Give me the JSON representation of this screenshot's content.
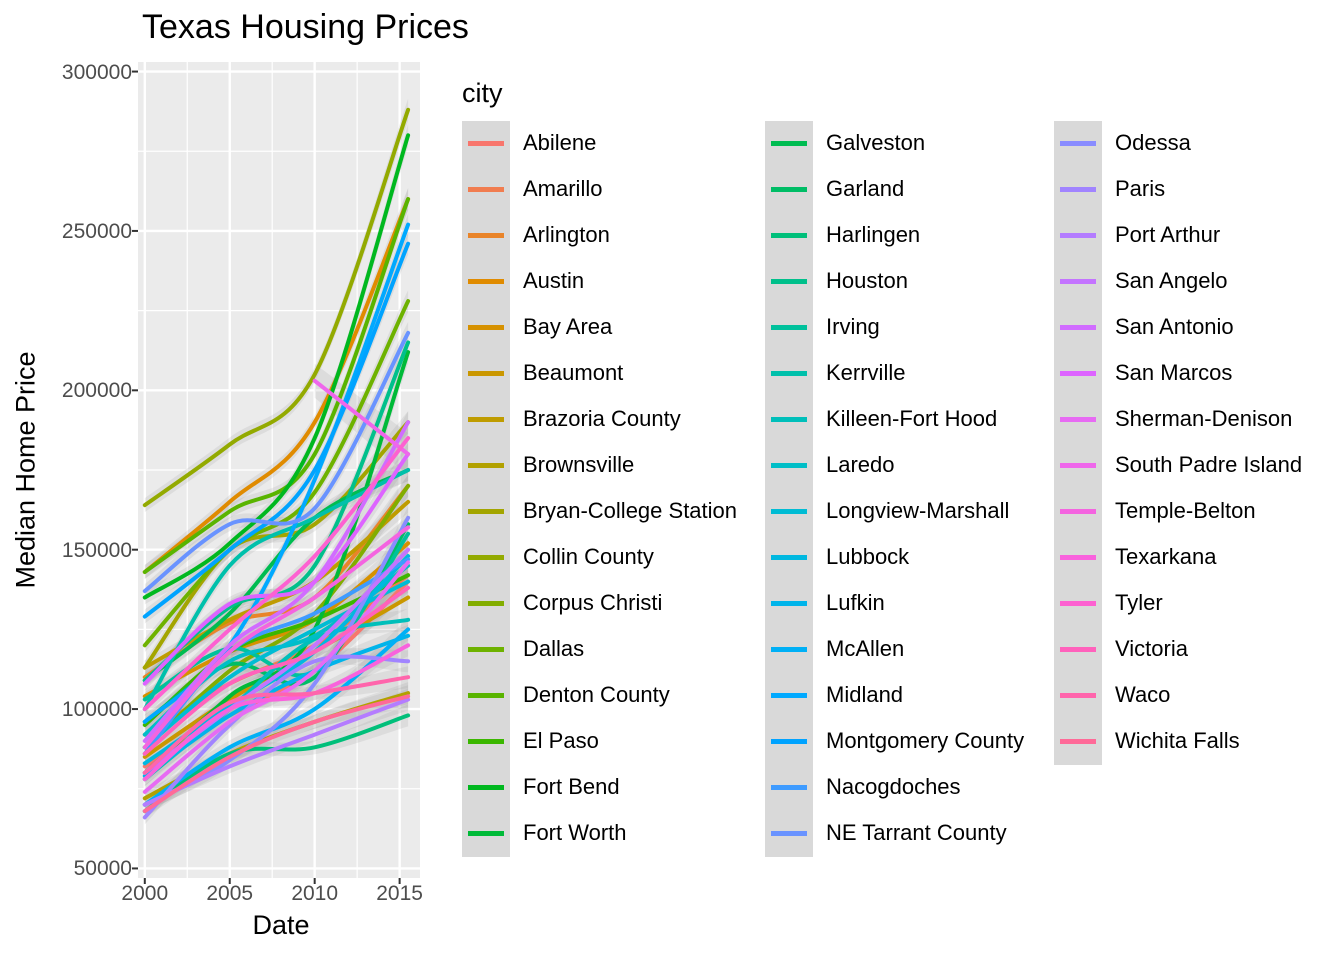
{
  "chart_data": {
    "type": "line",
    "title": "Texas Housing Prices",
    "xlabel": "Date",
    "ylabel": "Median Home Price",
    "legend_title": "city",
    "legend_position": "right",
    "grid": true,
    "smoothed": true,
    "confidence_band": true,
    "xlim": [
      1999.6,
      2016.2
    ],
    "ylim": [
      47000,
      303000
    ],
    "x_ticks": [
      2000,
      2005,
      2010,
      2015
    ],
    "x_tick_labels": [
      "2000",
      "2005",
      "2010",
      "2015"
    ],
    "y_ticks": [
      50000,
      100000,
      150000,
      200000,
      250000,
      300000
    ],
    "y_tick_labels": [
      "50000",
      "100000",
      "150000",
      "200000",
      "250000",
      "300000"
    ],
    "x": [
      2000,
      2005,
      2010,
      2015.5
    ],
    "series": [
      {
        "name": "Abilene",
        "color": "#F8766D",
        "values": [
          82000,
          98000,
          112000,
          140000
        ]
      },
      {
        "name": "Amarillo",
        "color": "#F17D50",
        "values": [
          92000,
          108000,
          120000,
          142000
        ]
      },
      {
        "name": "Arlington",
        "color": "#E98429",
        "values": [
          110000,
          127000,
          135000,
          170000
        ]
      },
      {
        "name": "Austin",
        "color": "#E08B00",
        "values": [
          143000,
          165000,
          190000,
          260000
        ]
      },
      {
        "name": "Bay Area",
        "color": "#D69100",
        "values": [
          104000,
          118000,
          128000,
          152000
        ]
      },
      {
        "name": "Beaumont",
        "color": "#CA9700",
        "values": [
          85000,
          103000,
          118000,
          135000
        ]
      },
      {
        "name": "Brazoria County",
        "color": "#BF9C00",
        "values": [
          113000,
          128000,
          140000,
          165000
        ]
      },
      {
        "name": "Brownsville",
        "color": "#B2A100",
        "values": [
          72000,
          86000,
          96000,
          105000
        ]
      },
      {
        "name": "Bryan-College Station",
        "color": "#A3A500",
        "values": [
          113000,
          150000,
          158000,
          190000
        ]
      },
      {
        "name": "Collin County",
        "color": "#93AA00",
        "values": [
          164000,
          183000,
          205000,
          288000
        ]
      },
      {
        "name": "Corpus Christi",
        "color": "#82AD00",
        "values": [
          88000,
          112000,
          130000,
          170000
        ]
      },
      {
        "name": "Dallas",
        "color": "#6EB200",
        "values": [
          120000,
          150000,
          168000,
          228000
        ]
      },
      {
        "name": "Denton County",
        "color": "#59B400",
        "values": [
          143000,
          162000,
          180000,
          260000
        ]
      },
      {
        "name": "El Paso",
        "color": "#3BB700",
        "values": [
          95000,
          118000,
          128000,
          142000
        ]
      },
      {
        "name": "Fort Bend",
        "color": "#00B81F",
        "values": [
          135000,
          152000,
          185000,
          280000
        ]
      },
      {
        "name": "Fort Worth",
        "color": "#00BA38",
        "values": [
          80000,
          104000,
          125000,
          212000
        ]
      },
      {
        "name": "Galveston",
        "color": "#00BC51",
        "values": [
          109000,
          130000,
          160000,
          175000
        ]
      },
      {
        "name": "Garland",
        "color": "#00BD66",
        "values": [
          96000,
          114000,
          110000,
          158000
        ]
      },
      {
        "name": "Harlingen",
        "color": "#00BF7A",
        "values": [
          68000,
          86000,
          88000,
          98000
        ]
      },
      {
        "name": "Houston",
        "color": "#00C08B",
        "values": [
          109000,
          132000,
          145000,
          215000
        ]
      },
      {
        "name": "Irving",
        "color": "#00C19C",
        "values": [
          103000,
          119000,
          112000,
          155000
        ]
      },
      {
        "name": "Kerrville",
        "color": "#00C0AB",
        "values": [
          100000,
          145000,
          160000,
          175000
        ]
      },
      {
        "name": "Killeen-Fort Hood",
        "color": "#00BFBA",
        "values": [
          78000,
          100000,
          122000,
          128000
        ]
      },
      {
        "name": "Laredo",
        "color": "#00BEC7",
        "values": [
          92000,
          115000,
          123000,
          145000
        ]
      },
      {
        "name": "Longview-Marshall",
        "color": "#00BCD4",
        "values": [
          88000,
          110000,
          125000,
          140000
        ]
      },
      {
        "name": "Lubbock",
        "color": "#00B8E0",
        "values": [
          83000,
          101000,
          118000,
          148000
        ]
      },
      {
        "name": "Lufkin",
        "color": "#00B4EA",
        "values": [
          79000,
          98000,
          112000,
          123000
        ]
      },
      {
        "name": "McAllen",
        "color": "#00B0F6",
        "values": [
          70000,
          88000,
          100000,
          125000
        ]
      },
      {
        "name": "Midland",
        "color": "#00A9FF",
        "values": [
          96000,
          120000,
          172000,
          252000
        ]
      },
      {
        "name": "Montgomery County",
        "color": "#00A3FF",
        "values": [
          129000,
          150000,
          175000,
          246000
        ]
      },
      {
        "name": "Nacogdoches",
        "color": "#3E9BFF",
        "values": [
          86000,
          118000,
          130000,
          147000
        ]
      },
      {
        "name": "NE Tarrant County",
        "color": "#6993FF",
        "values": [
          137000,
          158000,
          163000,
          218000
        ]
      },
      {
        "name": "Odessa",
        "color": "#898CFF",
        "values": [
          70000,
          84000,
          108000,
          160000
        ]
      },
      {
        "name": "Paris",
        "color": "#A184FF",
        "values": [
          66000,
          95000,
          115000,
          115000
        ]
      },
      {
        "name": "Port Arthur",
        "color": "#B47CFF",
        "values": [
          70000,
          82000,
          92000,
          103000
        ]
      },
      {
        "name": "San Angelo",
        "color": "#C474FF",
        "values": [
          80000,
          100000,
          120000,
          150000
        ]
      },
      {
        "name": "San Antonio",
        "color": "#D16CFF",
        "values": [
          90000,
          120000,
          140000,
          190000
        ]
      },
      {
        "name": "San Marcos",
        "color": "#DD64FF",
        "values": [
          108000,
          133000,
          140000,
          180000
        ]
      },
      {
        "name": "Sherman-Denison",
        "color": "#E76BF3",
        "values": [
          74000,
          96000,
          112000,
          146000
        ]
      },
      {
        "name": "South Padre Island",
        "color": "#EF67EB",
        "values": [
          null,
          null,
          203000,
          180000
        ]
      },
      {
        "name": "Temple-Belton",
        "color": "#F464E0",
        "values": [
          88000,
          118000,
          135000,
          157000
        ]
      },
      {
        "name": "Texarkana",
        "color": "#F962DD",
        "values": [
          78000,
          100000,
          105000,
          120000
        ]
      },
      {
        "name": "Tyler",
        "color": "#FD61D1",
        "values": [
          100000,
          125000,
          148000,
          185000
        ]
      },
      {
        "name": "Victoria",
        "color": "#FF62BC",
        "values": [
          86000,
          108000,
          118000,
          138000
        ]
      },
      {
        "name": "Waco",
        "color": "#FF65AC",
        "values": [
          80000,
          102000,
          105000,
          110000
        ]
      },
      {
        "name": "Wichita Falls",
        "color": "#FF6A98",
        "values": [
          68000,
          85000,
          96000,
          104000
        ]
      }
    ]
  }
}
